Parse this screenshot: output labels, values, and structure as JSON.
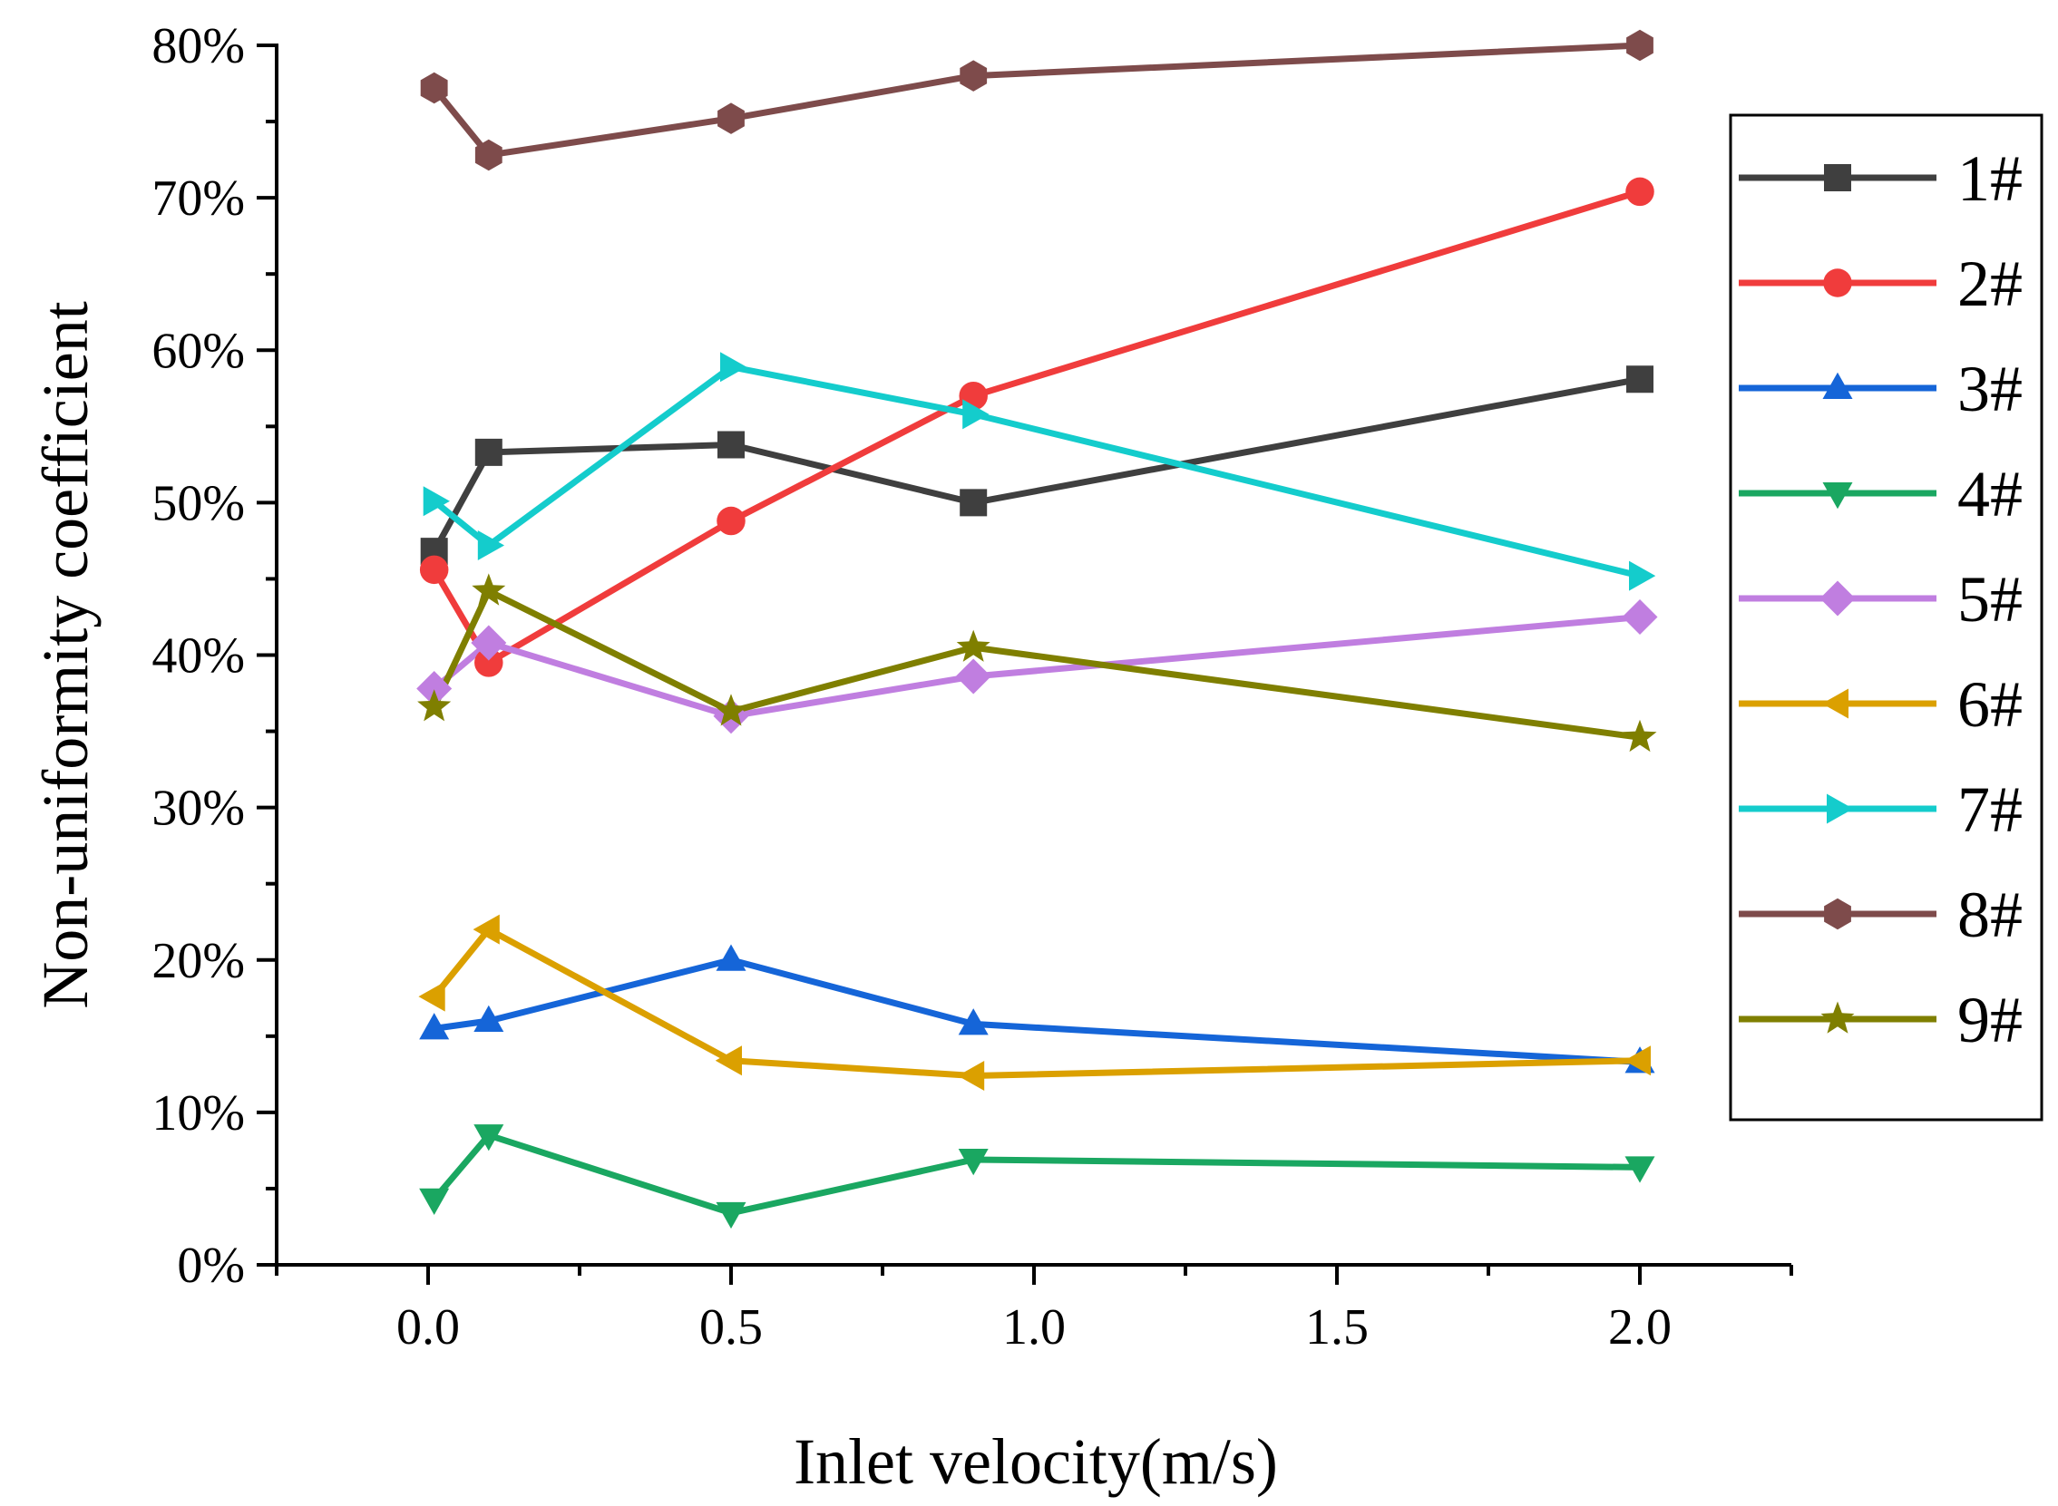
{
  "chart_data": {
    "type": "line",
    "xlabel": "Inlet velocity(m/s)",
    "ylabel": "Non-uniformity coefficient",
    "xlim": [
      -0.25,
      2.25
    ],
    "ylim": [
      0,
      80
    ],
    "x_ticks": [
      "0.0",
      "0.5",
      "1.0",
      "1.5",
      "2.0"
    ],
    "y_ticks": [
      "0%",
      "10%",
      "20%",
      "30%",
      "40%",
      "50%",
      "60%",
      "70%",
      "80%"
    ],
    "legend_position": "right",
    "x": [
      0.01,
      0.1,
      0.5,
      0.9,
      2.0
    ],
    "series": [
      {
        "name": "1#",
        "color": "#3f3f3f",
        "marker": "square",
        "values": [
          46.8,
          53.3,
          53.8,
          50.0,
          58.1
        ]
      },
      {
        "name": "2#",
        "color": "#f03c3c",
        "marker": "circle",
        "values": [
          45.6,
          39.5,
          48.8,
          57.0,
          70.4
        ]
      },
      {
        "name": "3#",
        "color": "#1565d8",
        "marker": "triangle-up",
        "values": [
          15.5,
          16.0,
          20.0,
          15.8,
          13.3
        ]
      },
      {
        "name": "4#",
        "color": "#1aa761",
        "marker": "triangle-down",
        "values": [
          4.3,
          8.5,
          3.4,
          6.9,
          6.4
        ]
      },
      {
        "name": "5#",
        "color": "#c07ee0",
        "marker": "diamond",
        "values": [
          37.8,
          40.8,
          36.0,
          38.6,
          42.5
        ]
      },
      {
        "name": "6#",
        "color": "#dba000",
        "marker": "triangle-left",
        "values": [
          17.6,
          22.0,
          13.4,
          12.4,
          13.4
        ]
      },
      {
        "name": "7#",
        "color": "#14cccc",
        "marker": "triangle-right",
        "values": [
          50.1,
          47.2,
          58.9,
          55.8,
          45.2
        ]
      },
      {
        "name": "8#",
        "color": "#7e4b4b",
        "marker": "hexagon",
        "values": [
          77.2,
          72.8,
          75.2,
          78.0,
          80.0
        ]
      },
      {
        "name": "9#",
        "color": "#7f7f00",
        "marker": "star",
        "values": [
          36.6,
          44.2,
          36.3,
          40.5,
          34.6
        ]
      }
    ]
  }
}
